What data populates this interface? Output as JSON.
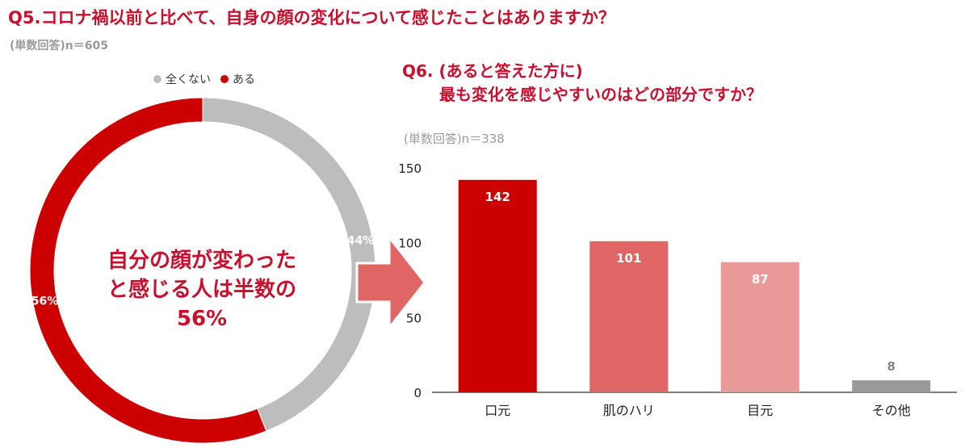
{
  "q5": {
    "title": "Q5.コロナ禍以前と比べて、自身の顔の変化について感じたことはありますか？",
    "note": "(単数回答)n＝605",
    "center_lines": [
      "自分の顔が変わった",
      "と感じる人は半数の",
      "56%"
    ]
  },
  "q6": {
    "title_line1": "Q6. (あると答えた方に)",
    "title_line2": "最も変化を感じやすいのはどの部分ですか？",
    "note": "(単数回答)n＝338"
  },
  "colors": {
    "brand": "#c8102e",
    "donut_aru": "#cc0000",
    "donut_nai": "#bdbdbd",
    "arrow": "#e06666",
    "bars": [
      "#cc0000",
      "#e06666",
      "#ea9999",
      "#999999"
    ]
  },
  "chart_data": [
    {
      "type": "pie",
      "style": "donut",
      "legend_position": "top",
      "categories": [
        "全くない",
        "ある"
      ],
      "values": [
        44,
        56
      ],
      "value_labels": [
        "44%",
        "56%"
      ],
      "unit": "%"
    },
    {
      "type": "bar",
      "categories": [
        "口元",
        "肌のハリ",
        "目元",
        "その他"
      ],
      "values": [
        142,
        101,
        87,
        8
      ],
      "data_labels": [
        "142",
        "101",
        "87",
        "8"
      ],
      "ylim": [
        0,
        150
      ],
      "yticks": [
        0,
        50,
        100,
        150
      ],
      "ytick_labels": [
        "0",
        "50",
        "100",
        "150"
      ],
      "grid": false,
      "xlabel": "",
      "ylabel": ""
    }
  ]
}
